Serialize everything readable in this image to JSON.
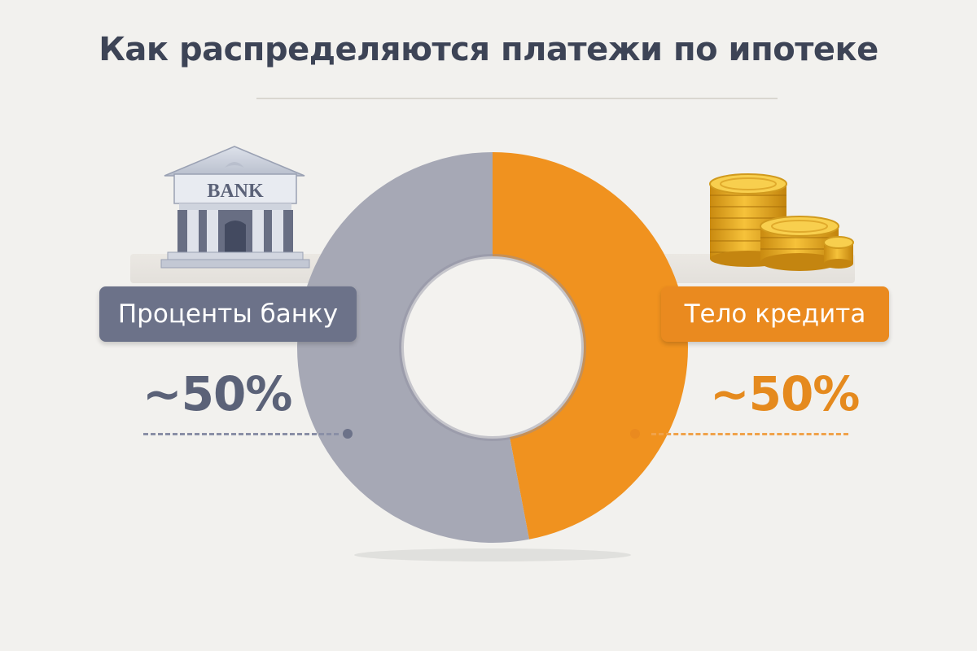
{
  "header": {
    "title": "Как распределяются платежи по ипотеке"
  },
  "icons": {
    "bank": "bank-building-icon",
    "bank_sign": "BANK",
    "coins": "coin-stack-icon"
  },
  "colors": {
    "interest": "#a6a8b5",
    "principal": "#f0921f",
    "interest_label_bg": "#6c7289",
    "principal_label_bg": "#ea8a1f",
    "title": "#3d4456",
    "background": "#f2f1ee"
  },
  "chart_data": {
    "type": "pie",
    "style": "donut",
    "title": "Как распределяются платежи по ипотеке",
    "legend": "left-right labels",
    "slices": [
      {
        "label": "Процентам банку",
        "display_label": "Проценты банку",
        "value": 53,
        "display_value": "~50%",
        "color": "#a6a8b5",
        "side": "left"
      },
      {
        "label": "Тело кредита",
        "display_label": "Тело кредита",
        "value": 47,
        "display_value": "~50%",
        "color": "#f0921f",
        "side": "right"
      }
    ]
  }
}
